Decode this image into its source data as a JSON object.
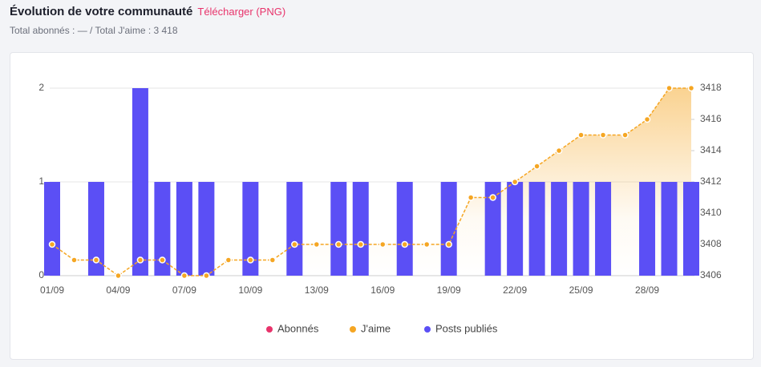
{
  "header": {
    "title": "Évolution de votre communauté",
    "download": "Télécharger (PNG)",
    "subtitle": "Total abonnés : — / Total J'aime : 3 418"
  },
  "chart_data": {
    "type": "bar-line",
    "categories": [
      "01/09",
      null,
      null,
      "04/09",
      null,
      null,
      "07/09",
      null,
      null,
      "10/09",
      null,
      null,
      "13/09",
      null,
      null,
      "16/09",
      null,
      null,
      "19/09",
      null,
      null,
      "22/09",
      null,
      null,
      "25/09",
      null,
      null,
      "28/09",
      null,
      null
    ],
    "series": [
      {
        "name": "Abonnés",
        "color": "#e8336b",
        "values": [
          null,
          null,
          null,
          null,
          null,
          null,
          null,
          null,
          null,
          null,
          null,
          null,
          null,
          null,
          null,
          null,
          null,
          null,
          null,
          null,
          null,
          null,
          null,
          null,
          null,
          null,
          null,
          null,
          null,
          null
        ]
      },
      {
        "name": "J'aime",
        "color": "#f5a623",
        "axis": "y2",
        "values": [
          3408,
          3407,
          3407,
          3406,
          3407,
          3407,
          3406,
          3406,
          3407,
          3407,
          3407,
          3408,
          3408,
          3408,
          3408,
          3408,
          3408,
          3408,
          3408,
          3411,
          3411,
          3412,
          3413,
          3414,
          3415,
          3415,
          3415,
          3416,
          3418,
          3418
        ]
      },
      {
        "name": "Posts publiés",
        "color": "#5b4ff5",
        "values": [
          1,
          0,
          1,
          0,
          2,
          1,
          1,
          1,
          0,
          1,
          0,
          1,
          0,
          1,
          1,
          0,
          1,
          0,
          1,
          0,
          1,
          1,
          1,
          1,
          1,
          1,
          0,
          1,
          1,
          1
        ]
      }
    ],
    "ylim": [
      0,
      2
    ],
    "yticks": [
      0,
      1,
      2
    ],
    "y2lim": [
      3406,
      3418
    ],
    "y2ticks": [
      3406,
      3408,
      3410,
      3412,
      3414,
      3416,
      3418
    ],
    "grid": true,
    "legend": "bottom"
  }
}
